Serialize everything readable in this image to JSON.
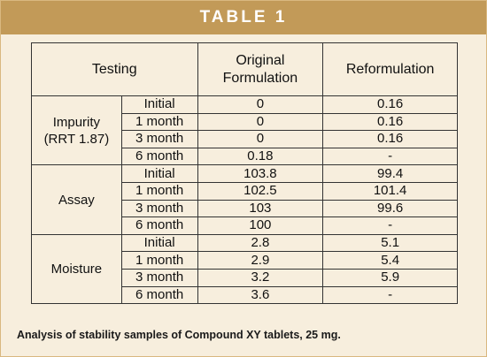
{
  "title": "TABLE 1",
  "headers": {
    "testing": "Testing",
    "original_line1": "Original",
    "original_line2": "Formulation",
    "reformulation": "Reformulation"
  },
  "groups": [
    {
      "name_line1": "Impurity",
      "name_line2": "(RRT 1.87)",
      "rows": [
        {
          "time": "Initial",
          "original": "0",
          "reformulation": "0.16"
        },
        {
          "time": "1 month",
          "original": "0",
          "reformulation": "0.16"
        },
        {
          "time": "3 month",
          "original": "0",
          "reformulation": "0.16"
        },
        {
          "time": "6 month",
          "original": "0.18",
          "reformulation": "-"
        }
      ]
    },
    {
      "name_line1": "Assay",
      "name_line2": "",
      "rows": [
        {
          "time": "Initial",
          "original": "103.8",
          "reformulation": "99.4"
        },
        {
          "time": "1 month",
          "original": "102.5",
          "reformulation": "101.4"
        },
        {
          "time": "3 month",
          "original": "103",
          "reformulation": "99.6"
        },
        {
          "time": "6 month",
          "original": "100",
          "reformulation": "-"
        }
      ]
    },
    {
      "name_line1": "Moisture",
      "name_line2": "",
      "rows": [
        {
          "time": "Initial",
          "original": "2.8",
          "reformulation": "5.1"
        },
        {
          "time": "1 month",
          "original": "2.9",
          "reformulation": "5.4"
        },
        {
          "time": "3 month",
          "original": "3.2",
          "reformulation": "5.9"
        },
        {
          "time": "6 month",
          "original": "3.6",
          "reformulation": "-"
        }
      ]
    }
  ],
  "caption": "Analysis of stability samples of Compound XY tablets, 25 mg.",
  "colors": {
    "banner": "#c29a58",
    "background": "#f7eedd",
    "frame_border": "#d9b880"
  }
}
